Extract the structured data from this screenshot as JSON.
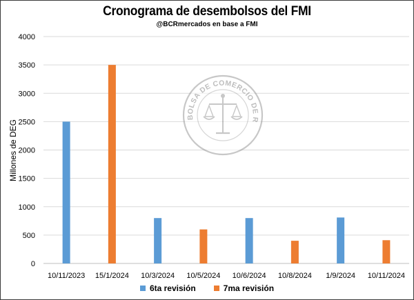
{
  "chart_data": {
    "type": "bar",
    "title": "Cronograma de desembolsos del FMI",
    "subtitle": "@BCRmercados  en base a FMI",
    "ylabel": "Millones de DEG",
    "ylim": [
      0,
      4000
    ],
    "yticks": [
      0,
      500,
      1000,
      1500,
      2000,
      2500,
      3000,
      3500,
      4000
    ],
    "grid": true,
    "legend_position": "bottom",
    "categories": [
      "10/11/2023",
      "15/1/2024",
      "10/3/2024",
      "10/5/2024",
      "10/6/2024",
      "10/8/2024",
      "1/9/2024",
      "10/11/2024"
    ],
    "series": [
      {
        "name": "6ta revisión",
        "color": "#5b9bd5",
        "values": [
          2500,
          null,
          800,
          null,
          800,
          null,
          810,
          null
        ]
      },
      {
        "name": "7ma revisión",
        "color": "#ed7d31",
        "values": [
          null,
          3500,
          null,
          600,
          null,
          400,
          null,
          410
        ]
      }
    ],
    "watermark": "BOLSA DE COMERCIO DE ROSARIO"
  }
}
